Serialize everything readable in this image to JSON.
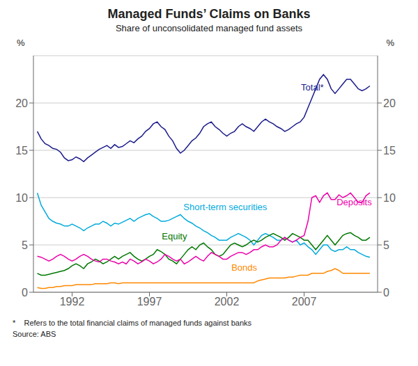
{
  "chart_data": {
    "type": "line",
    "title": "Managed Funds’ Claims on Banks",
    "subtitle": "Share of unconsolidated managed fund assets",
    "ylabel": "%",
    "y2label": "%",
    "footnote": "*    Refers to the total financial claims of managed funds against banks",
    "source": "Source: ABS",
    "x": [
      1989.75,
      1990.0,
      1990.25,
      1990.5,
      1990.75,
      1991.0,
      1991.25,
      1991.5,
      1991.75,
      1992.0,
      1992.25,
      1992.5,
      1992.75,
      1993.0,
      1993.25,
      1993.5,
      1993.75,
      1994.0,
      1994.25,
      1994.5,
      1994.75,
      1995.0,
      1995.25,
      1995.5,
      1995.75,
      1996.0,
      1996.25,
      1996.5,
      1996.75,
      1997.0,
      1997.25,
      1997.5,
      1997.75,
      1998.0,
      1998.25,
      1998.5,
      1998.75,
      1999.0,
      1999.25,
      1999.5,
      1999.75,
      2000.0,
      2000.25,
      2000.5,
      2000.75,
      2001.0,
      2001.25,
      2001.5,
      2001.75,
      2002.0,
      2002.25,
      2002.5,
      2002.75,
      2003.0,
      2003.25,
      2003.5,
      2003.75,
      2004.0,
      2004.25,
      2004.5,
      2004.75,
      2005.0,
      2005.25,
      2005.5,
      2005.75,
      2006.0,
      2006.25,
      2006.5,
      2006.75,
      2007.0,
      2007.25,
      2007.5,
      2007.75,
      2008.0,
      2008.25,
      2008.5,
      2008.75,
      2009.0,
      2009.25,
      2009.5,
      2009.75,
      2010.0,
      2010.25,
      2010.5,
      2010.75,
      2011.0,
      2011.25
    ],
    "xlim": [
      1989.5,
      2011.75
    ],
    "xticks": [
      1992,
      1997,
      2002,
      2007
    ],
    "ylim": [
      0,
      25
    ],
    "yticks": [
      0,
      5,
      10,
      15,
      20
    ],
    "y2lim": [
      0,
      25
    ],
    "y2ticks": [
      0,
      5,
      10,
      15,
      20
    ],
    "grid": true,
    "series": [
      {
        "name": "Total*",
        "color": "#1a1a8c",
        "values": [
          17.0,
          16.2,
          15.7,
          15.5,
          15.2,
          15.1,
          14.8,
          14.2,
          13.9,
          14.0,
          14.3,
          14.1,
          13.8,
          14.2,
          14.5,
          14.8,
          15.1,
          15.3,
          15.5,
          15.2,
          15.6,
          15.3,
          15.4,
          15.7,
          16.0,
          15.8,
          16.2,
          16.5,
          17.0,
          17.3,
          17.8,
          18.0,
          17.5,
          17.2,
          16.5,
          16.0,
          15.2,
          14.7,
          15.0,
          15.5,
          16.0,
          16.3,
          16.8,
          17.5,
          17.8,
          18.0,
          17.5,
          17.2,
          16.8,
          16.5,
          16.8,
          17.0,
          17.5,
          17.8,
          17.5,
          17.3,
          17.0,
          17.5,
          18.0,
          18.3,
          18.0,
          17.8,
          17.5,
          17.3,
          17.0,
          17.2,
          17.5,
          17.8,
          18.0,
          18.5,
          19.5,
          20.5,
          21.5,
          22.5,
          23.0,
          22.5,
          21.5,
          21.0,
          21.5,
          22.0,
          22.5,
          22.5,
          22.0,
          21.5,
          21.3,
          21.5,
          21.8
        ]
      },
      {
        "name": "Short-term securities",
        "color": "#00aadd",
        "values": [
          10.5,
          9.2,
          8.5,
          7.8,
          7.5,
          7.3,
          7.2,
          7.0,
          7.0,
          7.2,
          7.0,
          6.8,
          6.5,
          6.8,
          7.0,
          7.2,
          7.2,
          7.5,
          7.3,
          7.0,
          7.3,
          7.2,
          7.4,
          7.6,
          7.8,
          7.5,
          7.8,
          8.0,
          8.2,
          8.3,
          8.0,
          7.8,
          7.5,
          7.5,
          7.6,
          7.8,
          8.0,
          8.2,
          7.8,
          7.5,
          7.3,
          7.0,
          6.8,
          6.5,
          6.3,
          6.0,
          5.8,
          5.5,
          5.5,
          5.5,
          5.8,
          6.0,
          6.2,
          6.0,
          5.8,
          5.5,
          5.0,
          5.5,
          6.0,
          6.2,
          6.0,
          5.8,
          5.5,
          5.5,
          5.8,
          5.5,
          5.3,
          5.5,
          5.0,
          5.2,
          4.8,
          4.5,
          4.0,
          4.5,
          5.0,
          5.0,
          4.5,
          4.3,
          4.5,
          4.5,
          4.8,
          4.5,
          4.5,
          4.2,
          4.0,
          3.8,
          3.7
        ]
      },
      {
        "name": "Equity",
        "color": "#007700",
        "values": [
          2.0,
          1.8,
          1.8,
          1.9,
          2.0,
          2.1,
          2.2,
          2.3,
          2.5,
          2.8,
          3.0,
          2.8,
          2.5,
          3.0,
          3.2,
          3.5,
          3.3,
          3.0,
          3.2,
          3.5,
          3.8,
          3.5,
          3.8,
          4.0,
          4.2,
          3.8,
          3.5,
          3.3,
          3.5,
          3.8,
          4.0,
          4.5,
          4.3,
          4.0,
          3.5,
          3.3,
          3.0,
          3.5,
          4.0,
          4.5,
          4.8,
          4.5,
          5.0,
          5.2,
          4.8,
          4.5,
          4.0,
          3.8,
          4.0,
          4.5,
          5.0,
          5.2,
          5.0,
          4.8,
          5.0,
          5.3,
          5.5,
          5.3,
          5.5,
          5.8,
          6.0,
          6.2,
          6.0,
          5.8,
          5.5,
          5.8,
          6.2,
          6.0,
          5.8,
          5.5,
          5.5,
          5.0,
          4.5,
          5.0,
          5.5,
          6.0,
          5.5,
          5.0,
          5.5,
          6.0,
          6.2,
          6.3,
          6.0,
          5.8,
          5.5,
          5.5,
          5.8
        ]
      },
      {
        "name": "Deposits",
        "color": "#ee00aa",
        "values": [
          3.8,
          3.7,
          3.5,
          3.3,
          3.5,
          3.8,
          4.0,
          3.8,
          3.5,
          3.3,
          3.5,
          3.8,
          4.0,
          3.8,
          3.5,
          3.3,
          3.2,
          3.5,
          3.5,
          3.3,
          3.2,
          3.0,
          3.2,
          3.0,
          3.5,
          3.3,
          3.0,
          3.2,
          3.5,
          3.3,
          3.0,
          3.2,
          3.5,
          4.0,
          3.8,
          3.5,
          3.3,
          3.5,
          3.0,
          3.2,
          3.5,
          3.8,
          3.5,
          3.3,
          3.8,
          4.2,
          4.0,
          3.8,
          3.5,
          3.5,
          3.8,
          4.0,
          4.2,
          4.2,
          4.0,
          4.2,
          4.5,
          4.5,
          4.8,
          5.0,
          4.8,
          4.8,
          5.0,
          5.5,
          5.8,
          5.5,
          5.3,
          5.5,
          5.8,
          6.0,
          7.5,
          10.0,
          10.2,
          9.5,
          10.2,
          10.5,
          9.8,
          9.8,
          10.3,
          10.0,
          10.2,
          10.5,
          10.0,
          9.5,
          9.5,
          10.2,
          10.5
        ]
      },
      {
        "name": "Bonds",
        "color": "#ff8800",
        "values": [
          0.5,
          0.4,
          0.4,
          0.5,
          0.5,
          0.6,
          0.6,
          0.7,
          0.7,
          0.7,
          0.8,
          0.8,
          0.8,
          0.8,
          0.8,
          0.9,
          0.9,
          0.9,
          0.9,
          1.0,
          1.0,
          0.9,
          1.0,
          1.0,
          1.0,
          1.0,
          1.0,
          1.0,
          1.0,
          1.0,
          1.0,
          1.0,
          1.0,
          1.0,
          1.0,
          1.0,
          1.0,
          1.0,
          1.0,
          1.0,
          1.0,
          1.0,
          1.0,
          1.0,
          1.0,
          1.0,
          1.0,
          1.0,
          1.0,
          1.0,
          1.0,
          1.0,
          1.0,
          1.0,
          1.0,
          1.0,
          1.0,
          1.2,
          1.3,
          1.4,
          1.5,
          1.5,
          1.5,
          1.5,
          1.5,
          1.6,
          1.6,
          1.7,
          1.8,
          1.8,
          1.8,
          2.0,
          2.0,
          2.0,
          2.0,
          2.2,
          2.3,
          2.5,
          2.3,
          2.0,
          2.0,
          2.0,
          2.0,
          2.0,
          2.0,
          2.0,
          2.0
        ]
      }
    ],
    "annotations": [
      {
        "text": "Total*",
        "x": 2006.8,
        "y": 21.3,
        "color": "#1a1a8c"
      },
      {
        "text": "Short-term securities",
        "x": 1999.2,
        "y": 8.7,
        "color": "#00aadd"
      },
      {
        "text": "Equity",
        "x": 1997.8,
        "y": 5.6,
        "color": "#007700"
      },
      {
        "text": "Deposits",
        "x": 2009.1,
        "y": 9.2,
        "color": "#ee00aa"
      },
      {
        "text": "Bonds",
        "x": 2002.3,
        "y": 2.3,
        "color": "#ff8800"
      }
    ]
  }
}
